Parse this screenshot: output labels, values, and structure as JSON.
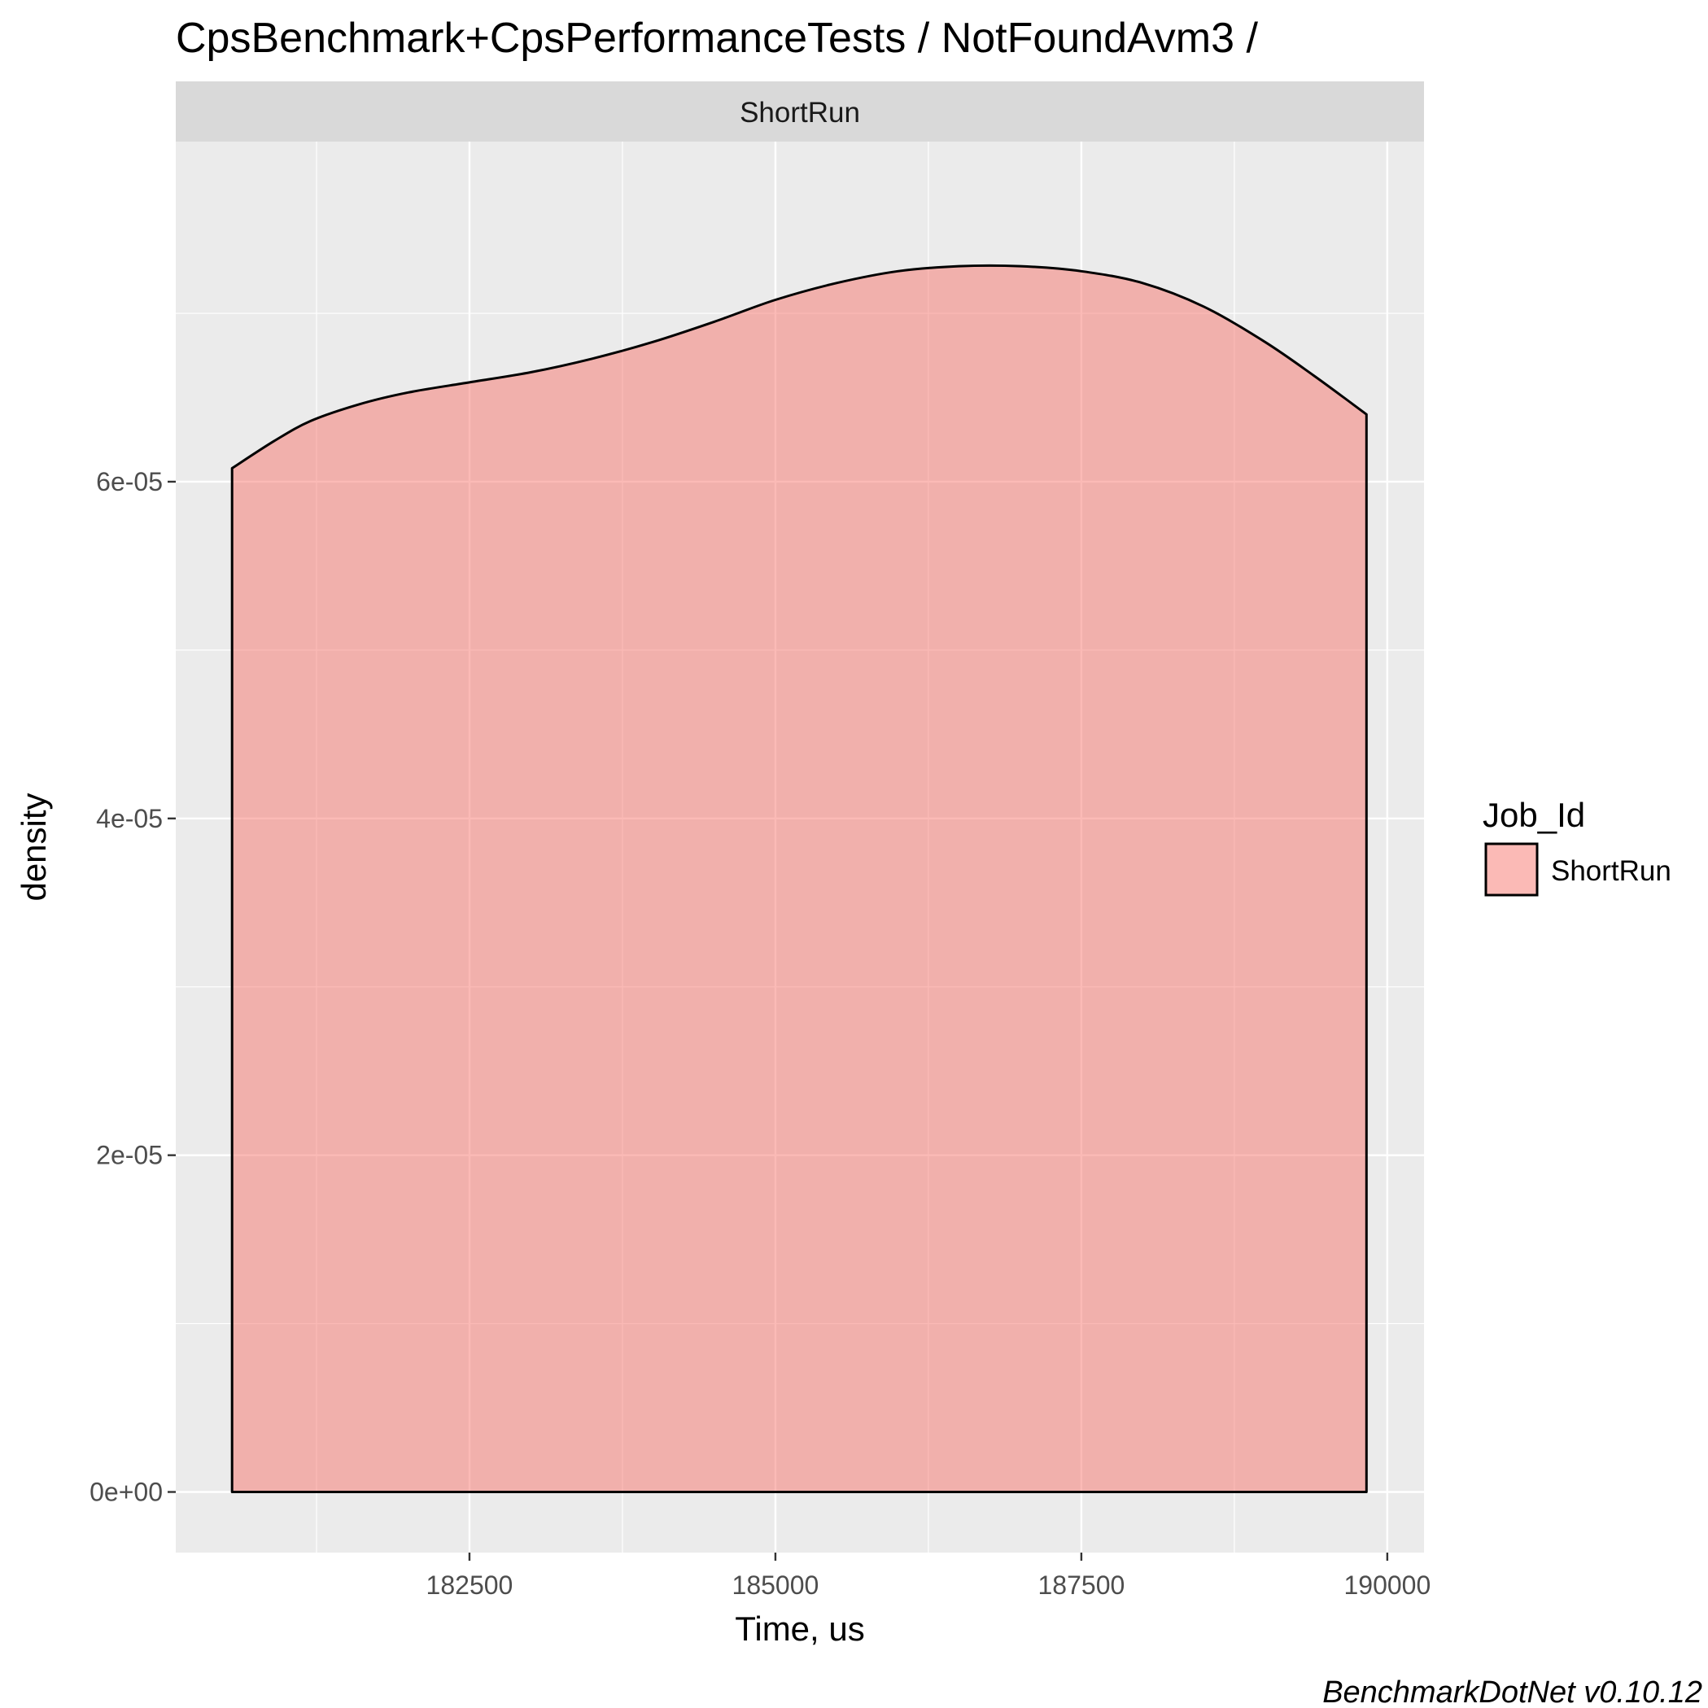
{
  "chart_data": {
    "type": "area",
    "title": "CpsBenchmark+CpsPerformanceTests / NotFoundAvm3 /",
    "facet_label": "ShortRun",
    "xlabel": "Time, us",
    "ylabel": "density",
    "xlim": [
      180100,
      190300
    ],
    "ylim": [
      -3.6e-06,
      8.02e-05
    ],
    "x_ticks": [
      182500,
      185000,
      187500,
      190000
    ],
    "x_tick_labels": [
      "182500",
      "185000",
      "187500",
      "190000"
    ],
    "y_ticks": [
      0,
      2e-05,
      4e-05,
      6e-05
    ],
    "y_tick_labels": [
      "0e+00",
      "2e-05",
      "4e-05",
      "6e-05"
    ],
    "grid": true,
    "legend": {
      "title": "Job_Id",
      "position": "right",
      "entries": [
        "ShortRun"
      ]
    },
    "series": [
      {
        "name": "ShortRun",
        "color": "#F8766D",
        "fill_opacity": 0.5,
        "x": [
          180560,
          180900,
          181200,
          181600,
          182000,
          182500,
          183000,
          183500,
          184000,
          184500,
          185000,
          185500,
          186000,
          186500,
          187000,
          187500,
          188000,
          188500,
          189000,
          189400,
          189830
        ],
        "y": [
          6.08e-05,
          6.24e-05,
          6.36e-05,
          6.46e-05,
          6.53e-05,
          6.59e-05,
          6.65e-05,
          6.73e-05,
          6.83e-05,
          6.95e-05,
          7.08e-05,
          7.18e-05,
          7.25e-05,
          7.28e-05,
          7.28e-05,
          7.25e-05,
          7.18e-05,
          7.04e-05,
          6.83e-05,
          6.63e-05,
          6.4e-05
        ]
      }
    ],
    "caption": "BenchmarkDotNet v0.10.12"
  }
}
